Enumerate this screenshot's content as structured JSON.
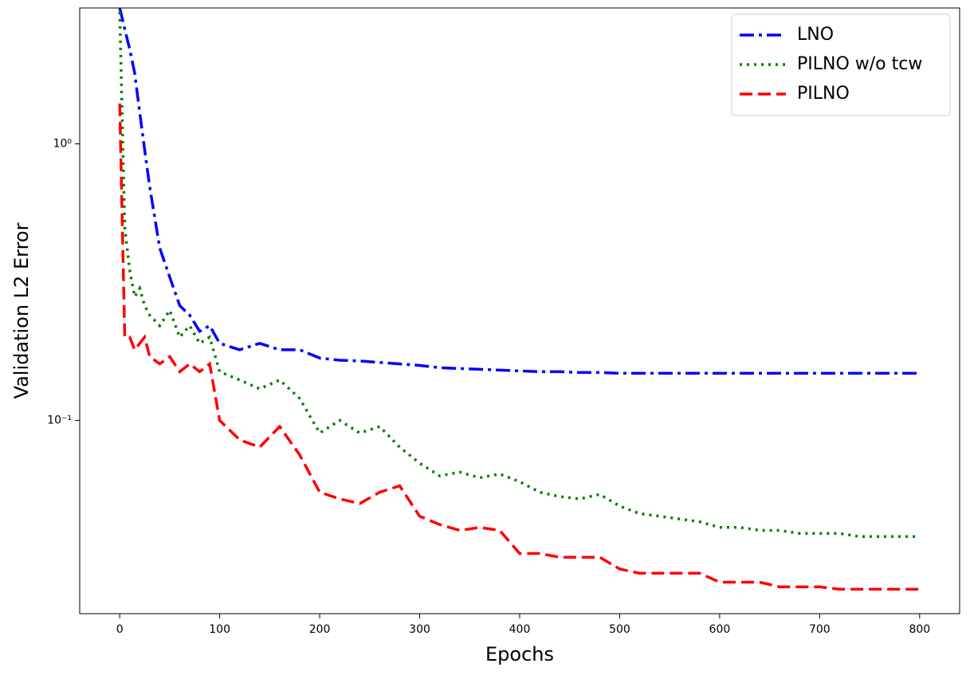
{
  "chart_data": {
    "type": "line",
    "xlabel": "Epochs",
    "ylabel": "Validation L2 Error",
    "yscale": "log",
    "xlim": [
      -40,
      840
    ],
    "ylim": [
      0.02,
      3.1
    ],
    "xticks": [
      0,
      100,
      200,
      300,
      400,
      500,
      600,
      700,
      800
    ],
    "yticks": [
      {
        "value": 0.1,
        "label": "10⁻¹"
      },
      {
        "value": 1,
        "label": "10⁰"
      }
    ],
    "grid": false,
    "legend": "upper right",
    "x": [
      0,
      5,
      10,
      15,
      20,
      25,
      30,
      40,
      50,
      60,
      70,
      80,
      90,
      100,
      120,
      140,
      160,
      180,
      200,
      220,
      240,
      260,
      280,
      300,
      320,
      340,
      360,
      380,
      400,
      420,
      440,
      460,
      480,
      500,
      520,
      540,
      560,
      580,
      600,
      620,
      640,
      660,
      680,
      700,
      720,
      740,
      760,
      780,
      800
    ],
    "series": [
      {
        "name": "LNO",
        "color": "#0000ff",
        "linestyle": "dashdot",
        "values": [
          3.1,
          2.6,
          2.2,
          1.8,
          1.3,
          0.95,
          0.7,
          0.42,
          0.33,
          0.26,
          0.24,
          0.21,
          0.22,
          0.19,
          0.18,
          0.19,
          0.18,
          0.18,
          0.168,
          0.165,
          0.164,
          0.162,
          0.16,
          0.158,
          0.155,
          0.154,
          0.153,
          0.152,
          0.151,
          0.15,
          0.15,
          0.149,
          0.149,
          0.148,
          0.148,
          0.148,
          0.148,
          0.148,
          0.148,
          0.148,
          0.148,
          0.148,
          0.148,
          0.148,
          0.148,
          0.148,
          0.148,
          0.148,
          0.148
        ]
      },
      {
        "name": "PILNO w/o tcw",
        "color": "#008000",
        "linestyle": "dotted",
        "values": [
          3.0,
          0.5,
          0.35,
          0.28,
          0.3,
          0.26,
          0.24,
          0.22,
          0.25,
          0.2,
          0.22,
          0.19,
          0.2,
          0.15,
          0.14,
          0.13,
          0.14,
          0.12,
          0.09,
          0.1,
          0.09,
          0.095,
          0.08,
          0.07,
          0.063,
          0.065,
          0.062,
          0.064,
          0.06,
          0.055,
          0.053,
          0.052,
          0.054,
          0.049,
          0.046,
          0.045,
          0.044,
          0.043,
          0.041,
          0.041,
          0.04,
          0.04,
          0.039,
          0.039,
          0.039,
          0.038,
          0.038,
          0.038,
          0.038
        ]
      },
      {
        "name": "PILNO",
        "color": "#ff0000",
        "linestyle": "dashed",
        "values": [
          1.4,
          0.2,
          0.2,
          0.18,
          0.19,
          0.2,
          0.17,
          0.16,
          0.17,
          0.15,
          0.16,
          0.15,
          0.16,
          0.1,
          0.085,
          0.08,
          0.095,
          0.075,
          0.055,
          0.052,
          0.05,
          0.055,
          0.058,
          0.045,
          0.042,
          0.04,
          0.041,
          0.04,
          0.033,
          0.033,
          0.032,
          0.032,
          0.032,
          0.029,
          0.028,
          0.028,
          0.028,
          0.028,
          0.026,
          0.026,
          0.026,
          0.025,
          0.025,
          0.025,
          0.0245,
          0.0245,
          0.0245,
          0.0245,
          0.0245
        ]
      }
    ]
  }
}
